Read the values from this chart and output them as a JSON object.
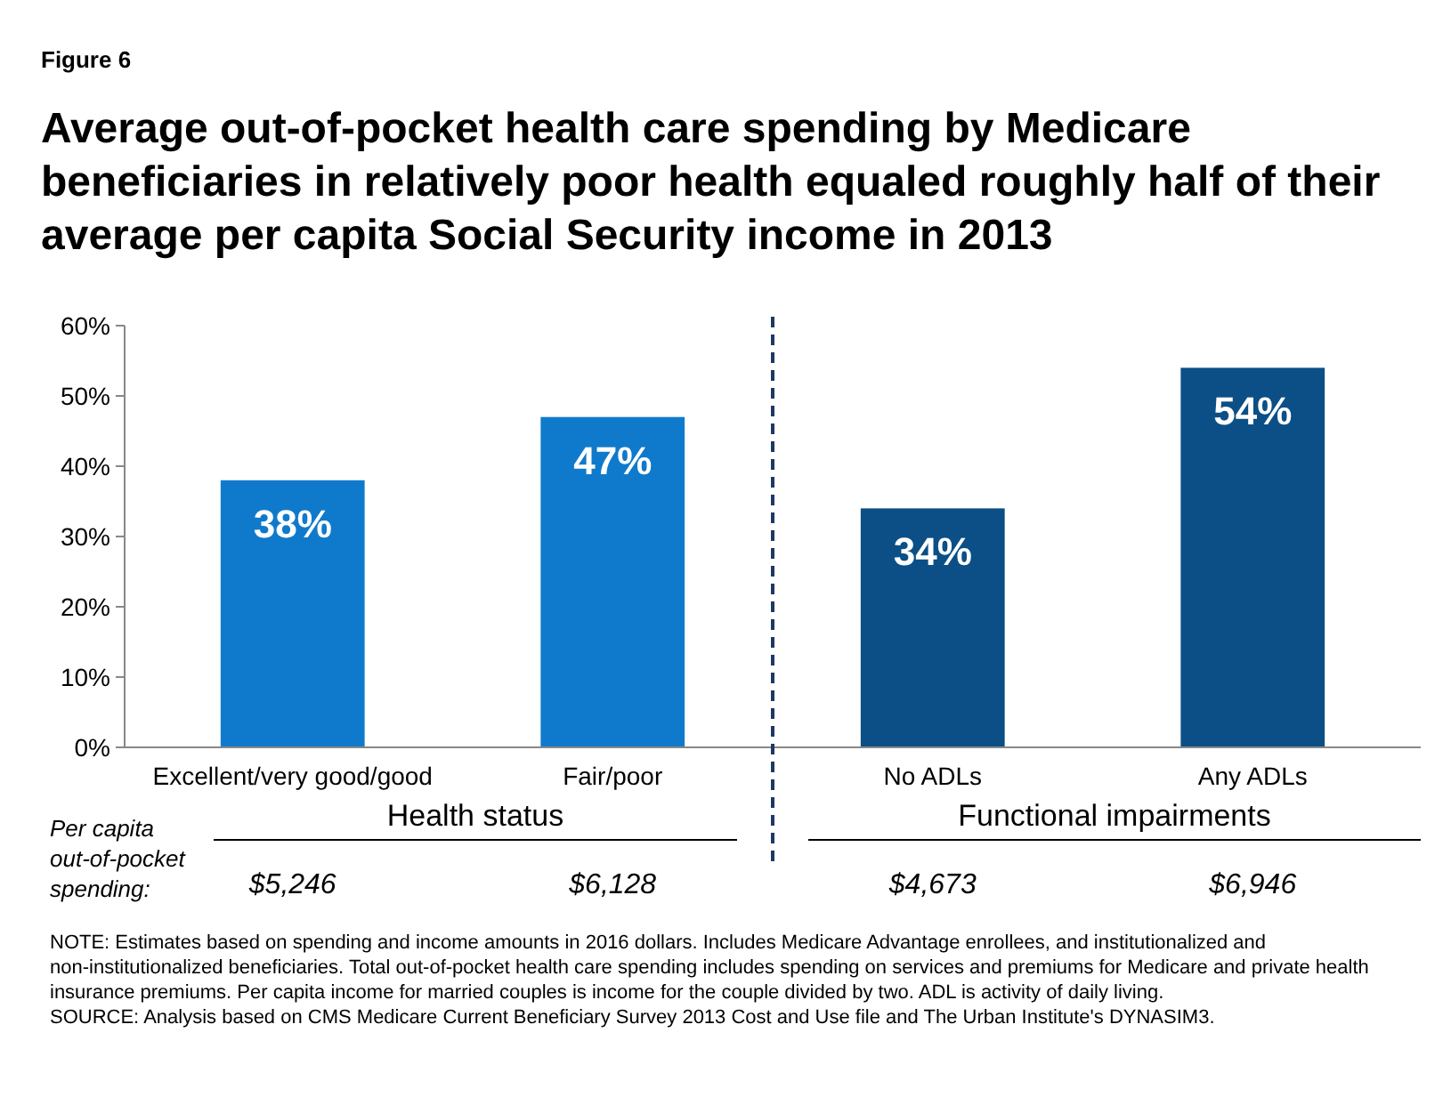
{
  "chart_data": {
    "type": "bar",
    "title": "Average out-of-pocket health care spending by Medicare beneficiaries in relatively poor health equaled roughly half of their average per capita Social Security income in 2013",
    "categories": [
      "Excellent/very good/good",
      "Fair/poor",
      "No ADLs",
      "Any ADLs"
    ],
    "values": [
      38,
      47,
      34,
      54
    ],
    "colors": [
      "#0f7acb",
      "#0f7acb",
      "#0b4f86",
      "#0b4f86"
    ],
    "value_labels": [
      "38%",
      "47%",
      "34%",
      "54%"
    ],
    "ylim": [
      0,
      60
    ],
    "yticks": [
      {
        "value": 0,
        "label": "0%"
      },
      {
        "value": 10,
        "label": "10%"
      },
      {
        "value": 20,
        "label": "20%"
      },
      {
        "value": 30,
        "label": "30%"
      },
      {
        "value": 40,
        "label": "40%"
      },
      {
        "value": 50,
        "label": "50%"
      },
      {
        "value": 60,
        "label": "60%"
      }
    ],
    "grid": false,
    "annotations": [
      "Figure 6",
      "Health status",
      "Functional impairments",
      "Per capita out-of-pocket spending:",
      "$5,246",
      "$6,128",
      "$4,673",
      "$6,946",
      "NOTE: Estimates based on spending and income amounts in 2016 dollars. Includes Medicare Advantage enrollees, and institutionalized and non-institutionalized beneficiaries. Total out-of-pocket health care spending includes spending on services and premiums for Medicare and private health insurance premiums. Per capita income for married couples is income for the couple divided by two. ADL is activity of daily living.",
      "SOURCE: Analysis based on CMS Medicare Current Beneficiary Survey 2013 Cost and Use file and The Urban Institute's DYNASIM3."
    ]
  }
}
